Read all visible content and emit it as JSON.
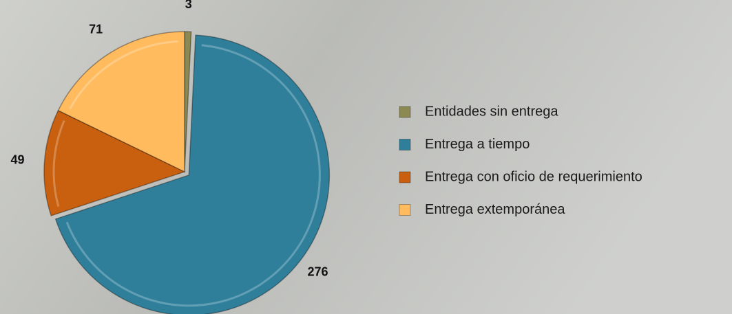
{
  "chart_data": {
    "type": "pie",
    "categories": [
      "Entidades sin entrega",
      "Entrega a tiempo",
      "Entrega con oficio de requerimiento",
      "Entrega extemporánea"
    ],
    "values": [
      3,
      276,
      49,
      71
    ],
    "colors": [
      "#8c8a52",
      "#2f7f9b",
      "#c9600f",
      "#ffbb5e"
    ],
    "legend": "right"
  }
}
